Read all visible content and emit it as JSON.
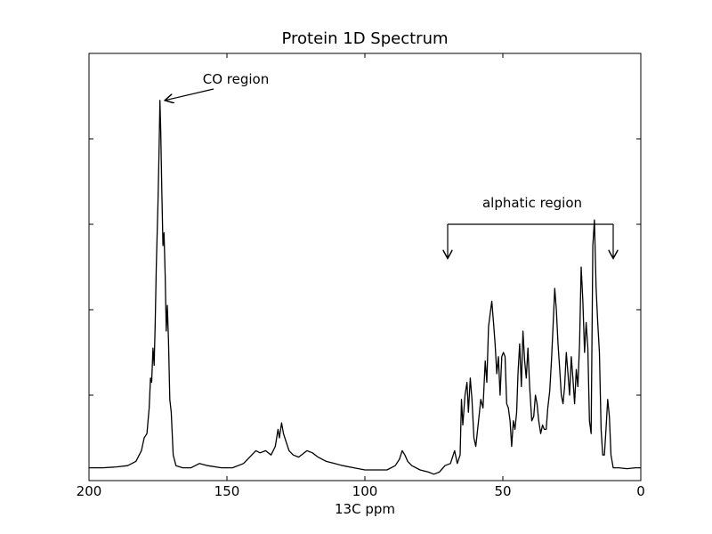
{
  "chart_data": {
    "type": "line",
    "title": "Protein 1D Spectrum",
    "xlabel": "13C ppm",
    "ylabel": "",
    "xlim": [
      200,
      0
    ],
    "ylim": [
      0,
      1.0
    ],
    "x_inverted": true,
    "grid": false,
    "legend": "none",
    "xticks": [
      200,
      150,
      100,
      50,
      0
    ],
    "xtick_labels": [
      "200",
      "150",
      "100",
      "50",
      "0"
    ],
    "yticks": [
      0.2,
      0.4,
      0.6,
      0.8
    ],
    "line_color": "#000000",
    "annotations": [
      {
        "text": "CO region",
        "target_x": 172.5,
        "target_y": 0.89
      },
      {
        "text": "alphatic region",
        "bracket_from_x": 70,
        "bracket_to_x": 10,
        "bracket_y": 0.6,
        "arrow_to_y": 0.52
      }
    ],
    "series": [
      {
        "values": [
          [
            200,
            0.03
          ],
          [
            195,
            0.03
          ],
          [
            190,
            0.032
          ],
          [
            186,
            0.035
          ],
          [
            183,
            0.045
          ],
          [
            181,
            0.07
          ],
          [
            180,
            0.1
          ],
          [
            179,
            0.11
          ],
          [
            178.2,
            0.17
          ],
          [
            177.7,
            0.24
          ],
          [
            177.3,
            0.23
          ],
          [
            176.8,
            0.31
          ],
          [
            176.4,
            0.27
          ],
          [
            176,
            0.37
          ],
          [
            175.6,
            0.5
          ],
          [
            175,
            0.65
          ],
          [
            174.6,
            0.77
          ],
          [
            174.3,
            0.89
          ],
          [
            174,
            0.82
          ],
          [
            173.6,
            0.68
          ],
          [
            173.2,
            0.55
          ],
          [
            172.8,
            0.58
          ],
          [
            172.4,
            0.48
          ],
          [
            172,
            0.35
          ],
          [
            171.6,
            0.41
          ],
          [
            171.2,
            0.33
          ],
          [
            170.7,
            0.19
          ],
          [
            170.2,
            0.16
          ],
          [
            169.5,
            0.06
          ],
          [
            168.5,
            0.035
          ],
          [
            166,
            0.03
          ],
          [
            163,
            0.03
          ],
          [
            160,
            0.04
          ],
          [
            157,
            0.035
          ],
          [
            152,
            0.03
          ],
          [
            148,
            0.03
          ],
          [
            144,
            0.04
          ],
          [
            141,
            0.06
          ],
          [
            139.5,
            0.07
          ],
          [
            138,
            0.065
          ],
          [
            136,
            0.07
          ],
          [
            134,
            0.06
          ],
          [
            132.5,
            0.08
          ],
          [
            131.5,
            0.12
          ],
          [
            131,
            0.1
          ],
          [
            130.2,
            0.135
          ],
          [
            129.5,
            0.11
          ],
          [
            128.5,
            0.09
          ],
          [
            127.5,
            0.07
          ],
          [
            126,
            0.06
          ],
          [
            124,
            0.055
          ],
          [
            121,
            0.07
          ],
          [
            119,
            0.065
          ],
          [
            117,
            0.055
          ],
          [
            114,
            0.045
          ],
          [
            111,
            0.04
          ],
          [
            108,
            0.035
          ],
          [
            104,
            0.03
          ],
          [
            100,
            0.025
          ],
          [
            96,
            0.025
          ],
          [
            92,
            0.025
          ],
          [
            89,
            0.035
          ],
          [
            87.5,
            0.05
          ],
          [
            86.5,
            0.07
          ],
          [
            85.5,
            0.06
          ],
          [
            84.5,
            0.045
          ],
          [
            83,
            0.035
          ],
          [
            80,
            0.025
          ],
          [
            77,
            0.02
          ],
          [
            75,
            0.015
          ],
          [
            73,
            0.02
          ],
          [
            71,
            0.035
          ],
          [
            69,
            0.04
          ],
          [
            67.5,
            0.07
          ],
          [
            66.5,
            0.04
          ],
          [
            65.5,
            0.06
          ],
          [
            65,
            0.19
          ],
          [
            64.5,
            0.13
          ],
          [
            63.7,
            0.2
          ],
          [
            63,
            0.23
          ],
          [
            62.5,
            0.16
          ],
          [
            61.8,
            0.24
          ],
          [
            61.2,
            0.19
          ],
          [
            60.5,
            0.1
          ],
          [
            59.8,
            0.08
          ],
          [
            58.8,
            0.14
          ],
          [
            58,
            0.19
          ],
          [
            57.2,
            0.17
          ],
          [
            56.4,
            0.28
          ],
          [
            55.8,
            0.23
          ],
          [
            55.2,
            0.36
          ],
          [
            54.6,
            0.39
          ],
          [
            54,
            0.42
          ],
          [
            53.4,
            0.37
          ],
          [
            52.8,
            0.32
          ],
          [
            52.2,
            0.25
          ],
          [
            51.6,
            0.29
          ],
          [
            51,
            0.2
          ],
          [
            50.4,
            0.29
          ],
          [
            49.8,
            0.3
          ],
          [
            49.2,
            0.29
          ],
          [
            48.6,
            0.18
          ],
          [
            48,
            0.17
          ],
          [
            47.4,
            0.14
          ],
          [
            46.8,
            0.08
          ],
          [
            46.2,
            0.14
          ],
          [
            45.6,
            0.12
          ],
          [
            45,
            0.16
          ],
          [
            44.5,
            0.25
          ],
          [
            43.9,
            0.32
          ],
          [
            43.3,
            0.22
          ],
          [
            42.7,
            0.35
          ],
          [
            42.1,
            0.28
          ],
          [
            41.5,
            0.24
          ],
          [
            40.9,
            0.31
          ],
          [
            40.3,
            0.22
          ],
          [
            39.5,
            0.14
          ],
          [
            38.8,
            0.15
          ],
          [
            38.2,
            0.2
          ],
          [
            37.6,
            0.18
          ],
          [
            37,
            0.14
          ],
          [
            36.3,
            0.11
          ],
          [
            35.6,
            0.13
          ],
          [
            35,
            0.12
          ],
          [
            34.3,
            0.12
          ],
          [
            33.7,
            0.17
          ],
          [
            33,
            0.21
          ],
          [
            32.4,
            0.28
          ],
          [
            31.8,
            0.36
          ],
          [
            31.2,
            0.45
          ],
          [
            30.6,
            0.4
          ],
          [
            30,
            0.32
          ],
          [
            29.4,
            0.26
          ],
          [
            28.8,
            0.2
          ],
          [
            28.2,
            0.18
          ],
          [
            27.6,
            0.22
          ],
          [
            27,
            0.3
          ],
          [
            26.4,
            0.25
          ],
          [
            25.8,
            0.2
          ],
          [
            25.2,
            0.29
          ],
          [
            24.6,
            0.24
          ],
          [
            24,
            0.18
          ],
          [
            23.4,
            0.26
          ],
          [
            22.8,
            0.22
          ],
          [
            22.2,
            0.32
          ],
          [
            21.6,
            0.5
          ],
          [
            21,
            0.42
          ],
          [
            20.4,
            0.3
          ],
          [
            19.8,
            0.37
          ],
          [
            19.2,
            0.31
          ],
          [
            18.6,
            0.14
          ],
          [
            18,
            0.11
          ],
          [
            17.4,
            0.55
          ],
          [
            16.8,
            0.61
          ],
          [
            16.2,
            0.45
          ],
          [
            15.6,
            0.37
          ],
          [
            15,
            0.3
          ],
          [
            14.4,
            0.12
          ],
          [
            13.8,
            0.06
          ],
          [
            13.2,
            0.06
          ],
          [
            12.6,
            0.12
          ],
          [
            12,
            0.19
          ],
          [
            11.4,
            0.15
          ],
          [
            10.8,
            0.06
          ],
          [
            10,
            0.03
          ],
          [
            8,
            0.03
          ],
          [
            5,
            0.028
          ],
          [
            2,
            0.03
          ],
          [
            0,
            0.03
          ]
        ]
      }
    ]
  }
}
